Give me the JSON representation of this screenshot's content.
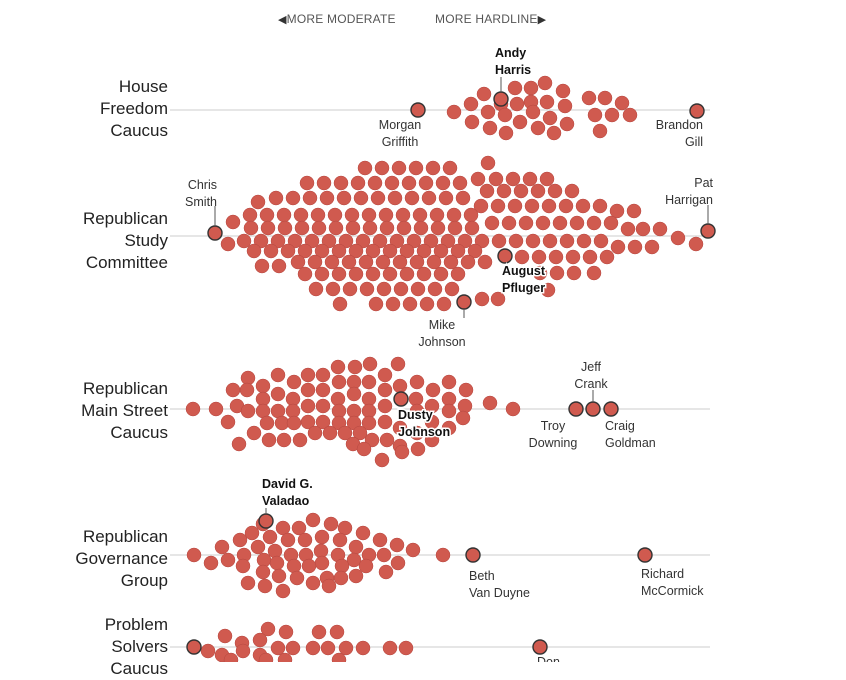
{
  "header": {
    "moderate_label": "MORE MODERATE",
    "hardline_label": "MORE HARDLINE"
  },
  "colors": {
    "dot": "#d05a4f",
    "dot_stroke": "#b54740",
    "highlight_stroke": "#333333",
    "axis": "#cccccc"
  },
  "groups": [
    {
      "id": "hfc",
      "name_lines": [
        "House",
        "Freedom",
        "Caucus"
      ]
    },
    {
      "id": "rsc",
      "name_lines": [
        "Republican",
        "Study",
        "Committee"
      ]
    },
    {
      "id": "msc",
      "name_lines": [
        "Republican",
        "Main Street",
        "Caucus"
      ]
    },
    {
      "id": "rgg",
      "name_lines": [
        "Republican",
        "Governance",
        "Group"
      ]
    },
    {
      "id": "ps",
      "name_lines": [
        "Problem",
        "Solvers",
        "Caucus"
      ]
    }
  ],
  "chart_data": {
    "type": "scatter",
    "xlabel": "",
    "ylabel": "",
    "highlighted_members": [
      {
        "group": "hfc",
        "name_lines": [
          "Andy",
          "Harris"
        ],
        "bold": true
      },
      {
        "group": "hfc",
        "name_lines": [
          "Morgan",
          "Griffith"
        ],
        "bold": false
      },
      {
        "group": "hfc",
        "name_lines": [
          "Brandon",
          "Gill"
        ],
        "bold": false
      },
      {
        "group": "rsc",
        "name_lines": [
          "Chris",
          "Smith"
        ],
        "bold": false
      },
      {
        "group": "rsc",
        "name_lines": [
          "Pat",
          "Harrigan"
        ],
        "bold": false
      },
      {
        "group": "rsc",
        "name_lines": [
          "August",
          "Pfluger"
        ],
        "bold": true
      },
      {
        "group": "rsc",
        "name_lines": [
          "Mike",
          "Johnson"
        ],
        "bold": false
      },
      {
        "group": "msc",
        "name_lines": [
          "Dusty",
          "Johnson"
        ],
        "bold": true
      },
      {
        "group": "msc",
        "name_lines": [
          "Jeff",
          "Crank"
        ],
        "bold": false
      },
      {
        "group": "msc",
        "name_lines": [
          "Troy",
          "Downing"
        ],
        "bold": false
      },
      {
        "group": "msc",
        "name_lines": [
          "Craig",
          "Goldman"
        ],
        "bold": false
      },
      {
        "group": "rgg",
        "name_lines": [
          "David G.",
          "Valadao"
        ],
        "bold": true
      },
      {
        "group": "rgg",
        "name_lines": [
          "Beth",
          "Van Duyne"
        ],
        "bold": false
      },
      {
        "group": "rgg",
        "name_lines": [
          "Richard",
          "McCormick"
        ],
        "bold": false
      },
      {
        "group": "ps",
        "name_lines": [
          "Don",
          ""
        ],
        "bold": false
      }
    ]
  }
}
